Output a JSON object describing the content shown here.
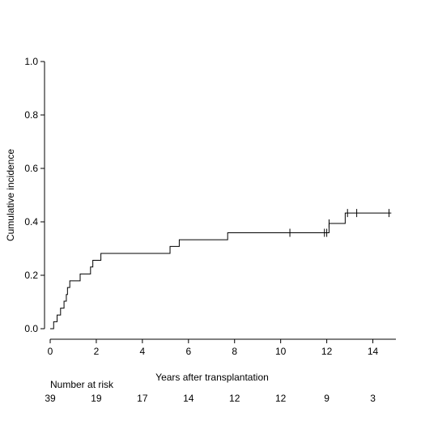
{
  "chart_data": {
    "type": "line",
    "title": "",
    "xlabel": "Years after transplantation",
    "ylabel": "Cumulative incidence",
    "xlim": [
      0,
      15
    ],
    "ylim": [
      0,
      1
    ],
    "x_ticks": [
      0,
      2,
      4,
      6,
      8,
      10,
      12,
      14
    ],
    "y_ticks": [
      "0.0",
      "0.2",
      "0.4",
      "0.6",
      "0.8",
      "1.0"
    ],
    "grid": false,
    "legend": "none",
    "step_curve": {
      "x": [
        0,
        0.15,
        0.3,
        0.45,
        0.6,
        0.7,
        0.75,
        0.85,
        0.9,
        1.0,
        1.3,
        1.75,
        1.85,
        2.0,
        2.2,
        5.2,
        5.5,
        5.6,
        7.7,
        12.1,
        12.8,
        14.8
      ],
      "y": [
        0.0,
        0.026,
        0.051,
        0.077,
        0.103,
        0.128,
        0.154,
        0.179,
        0.179,
        0.179,
        0.205,
        0.231,
        0.256,
        0.256,
        0.282,
        0.308,
        0.308,
        0.333,
        0.359,
        0.394,
        0.433,
        0.433
      ]
    },
    "censor_marks": {
      "x": [
        10.4,
        11.9,
        12.0,
        12.1,
        12.9,
        13.3,
        14.7
      ],
      "y": [
        0.359,
        0.359,
        0.359,
        0.394,
        0.433,
        0.433,
        0.433
      ]
    },
    "number_at_risk": {
      "label": "Number at risk",
      "times": [
        0,
        2,
        4,
        6,
        8,
        10,
        12,
        14
      ],
      "counts": [
        "39",
        "19",
        "17",
        "14",
        "12",
        "12",
        "9",
        "3"
      ]
    },
    "line_color": "#000000"
  }
}
